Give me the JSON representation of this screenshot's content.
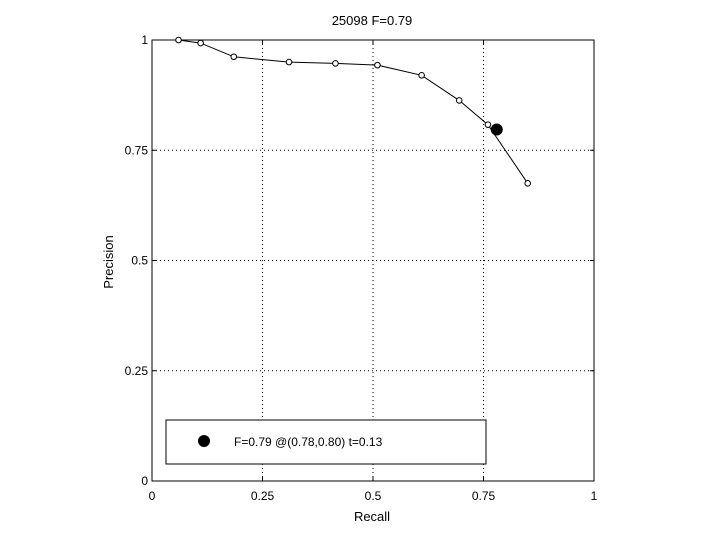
{
  "chart_data": {
    "type": "line",
    "title": "25098 F=0.79",
    "xlabel": "Recall",
    "ylabel": "Precision",
    "xlim": [
      0,
      1
    ],
    "ylim": [
      0,
      1
    ],
    "grid": true,
    "x_ticks": [
      "0",
      "0.25",
      "0.5",
      "0.75",
      "1"
    ],
    "y_ticks": [
      "0",
      "0.25",
      "0.5",
      "0.75",
      "1"
    ],
    "series": [
      {
        "points": [
          [
            0.06,
            1.0
          ],
          [
            0.11,
            0.993
          ],
          [
            0.185,
            0.962
          ],
          [
            0.31,
            0.95
          ],
          [
            0.415,
            0.947
          ],
          [
            0.51,
            0.943
          ],
          [
            0.61,
            0.92
          ],
          [
            0.695,
            0.863
          ],
          [
            0.76,
            0.808
          ],
          [
            0.85,
            0.675
          ]
        ]
      }
    ],
    "best_point": {
      "x": 0.78,
      "y": 0.797
    },
    "legend": {
      "text": "F=0.79 @(0.78,0.80) t=0.13",
      "placement": "bottom-left"
    }
  }
}
